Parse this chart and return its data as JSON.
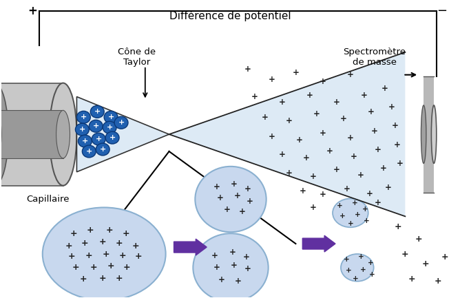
{
  "bg_color": "#ffffff",
  "diff_potentiel_text": "Différence de potentiel",
  "cone_taylor_text": "Cône de\nTaylor",
  "spectre_text": "Spectromètre\nde masse",
  "capillaire_text": "Capillaire",
  "capillary_gray": "#c8c8c8",
  "capillary_dark": "#999999",
  "capillary_edge": "#555555",
  "cone_fill": "#ddeaf5",
  "spray_fill": "#ddeaf5",
  "droplet_fill": "#c8d8ee",
  "droplet_edge": "#8ab0d0",
  "blue_ion_fill": "#2060b0",
  "blue_ion_edge": "#0a3878",
  "arrow_fill": "#6030a0",
  "det_gray": "#b8b8b8",
  "det_edge": "#555555"
}
